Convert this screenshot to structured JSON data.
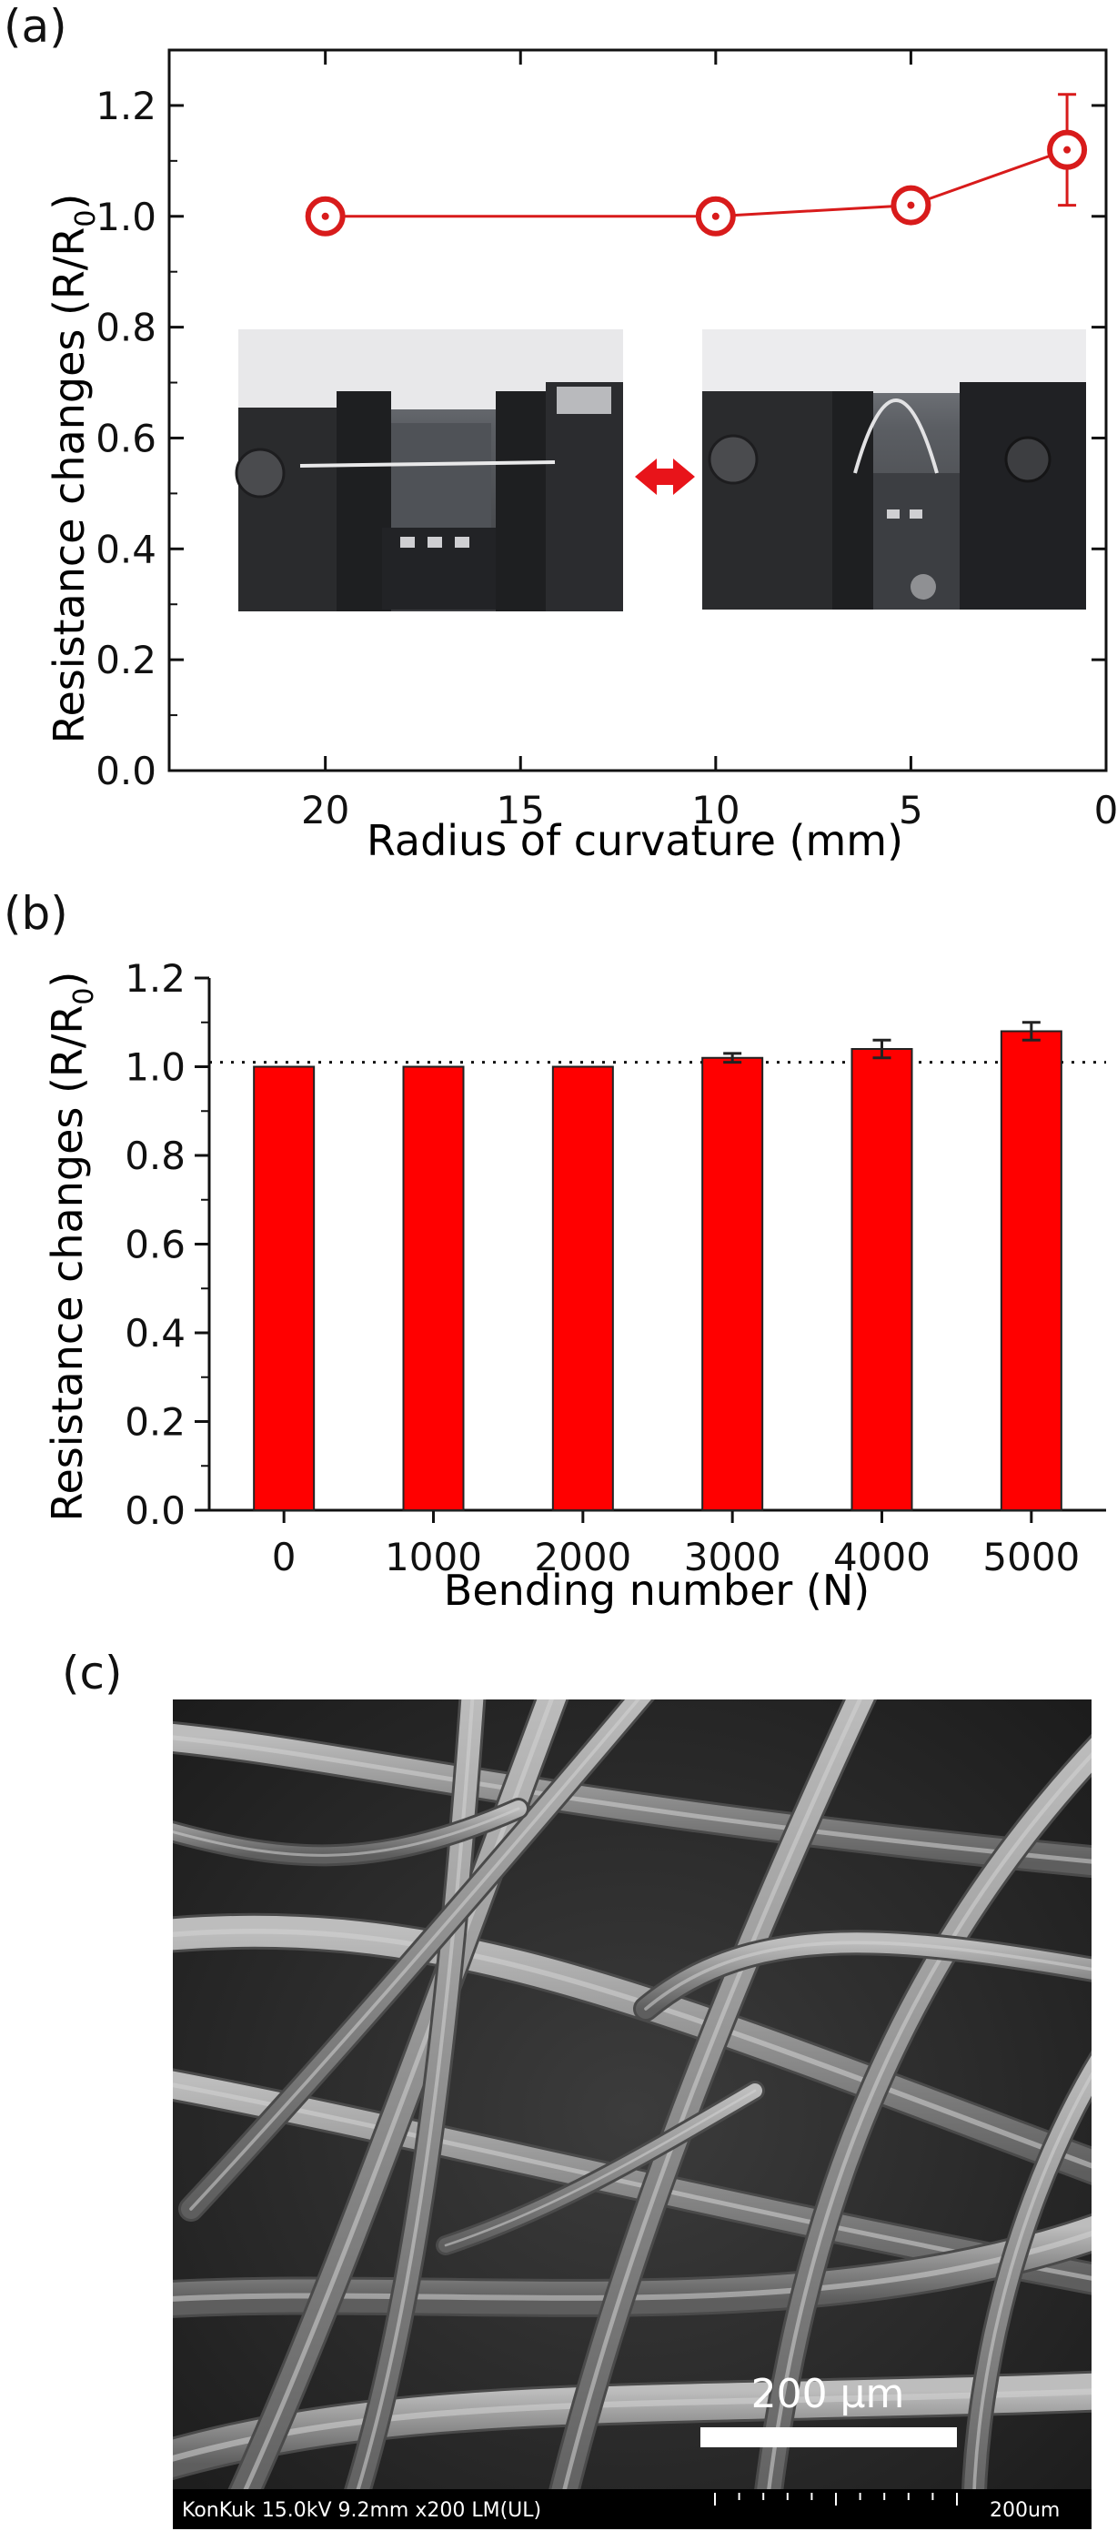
{
  "panels": {
    "a": "(a)",
    "b": "(b)",
    "c": "(c)"
  },
  "colors": {
    "series": "#d81b1b",
    "bar": "#ff0000",
    "axis": "#111111",
    "sem_bar": "#000000",
    "scale_bar": "#ffffff"
  },
  "chart_data": [
    {
      "type": "line",
      "title": "",
      "xlabel": "Radius of curvature (mm)",
      "ylabel": "Resistance changes (R/R",
      "ylabel_sub": "0",
      "ylabel_close": ")",
      "xlim": [
        24,
        0
      ],
      "ylim": [
        0.0,
        1.3
      ],
      "x_ticks": [
        "20",
        "15",
        "10",
        "5",
        "0"
      ],
      "y_ticks": [
        "0.0",
        "0.2",
        "0.4",
        "0.6",
        "0.8",
        "1.0",
        "1.2"
      ],
      "x": [
        20,
        10,
        5,
        1
      ],
      "y": [
        1.0,
        1.0,
        1.02,
        1.12
      ],
      "y_err": [
        0,
        0,
        0,
        0.1
      ],
      "marker": "open-circle-dot",
      "inset": "photos of bending test fixture (flat state and bent state) with a double-headed arrow"
    },
    {
      "type": "bar",
      "title": "",
      "xlabel": "Bending number (N)",
      "ylabel": "Resistance changes (R/R",
      "ylabel_sub": "0",
      "ylabel_close": ")",
      "categories": [
        "0",
        "1000",
        "2000",
        "3000",
        "4000",
        "5000"
      ],
      "values": [
        1.0,
        1.0,
        1.0,
        1.02,
        1.04,
        1.08
      ],
      "errors": [
        0,
        0,
        0,
        0.01,
        0.02,
        0.02
      ],
      "ylim": [
        0.0,
        1.2
      ],
      "y_ticks": [
        "0.0",
        "0.2",
        "0.4",
        "0.6",
        "0.8",
        "1.0",
        "1.2"
      ],
      "reference_line": 1.01,
      "reference_style": "dotted"
    }
  ],
  "sem": {
    "scale_label": "200 μm",
    "footer": "KonKuk 15.0kV 9.2mm x200 LM(UL)",
    "footer_scale": "200um"
  }
}
